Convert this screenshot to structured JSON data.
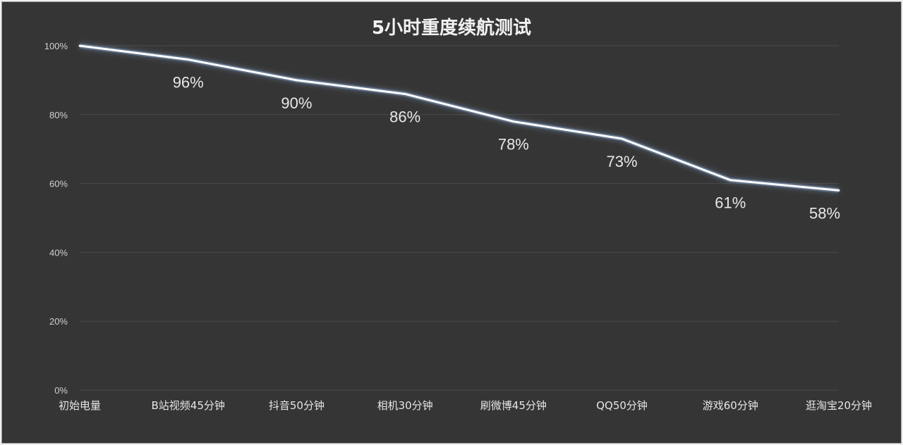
{
  "chart_data": {
    "type": "line",
    "title": "5小时重度续航测试",
    "xlabel": "",
    "ylabel": "",
    "categories": [
      "初始电量",
      "B站视频45分钟",
      "抖音50分钟",
      "相机30分钟",
      "刷微博45分钟",
      "QQ50分钟",
      "游戏60分钟",
      "逛淘宝20分钟"
    ],
    "series": [
      {
        "values": [
          100,
          96,
          90,
          86,
          78,
          73,
          61,
          58
        ],
        "data_labels": [
          "",
          "96%",
          "90%",
          "86%",
          "78%",
          "73%",
          "61%",
          "58%"
        ]
      }
    ],
    "ylim": [
      0,
      100
    ],
    "yticks": [
      0,
      20,
      40,
      60,
      80,
      100
    ],
    "ytick_labels": [
      "0%",
      "20%",
      "40%",
      "60%",
      "80%",
      "100%"
    ],
    "grid": true,
    "legend": "none",
    "colors": {
      "background": "#353535",
      "line": "#ffffff",
      "glow": "#8fb4e6",
      "grid": "#4a4a4a",
      "text": "#e6e6e6"
    }
  }
}
